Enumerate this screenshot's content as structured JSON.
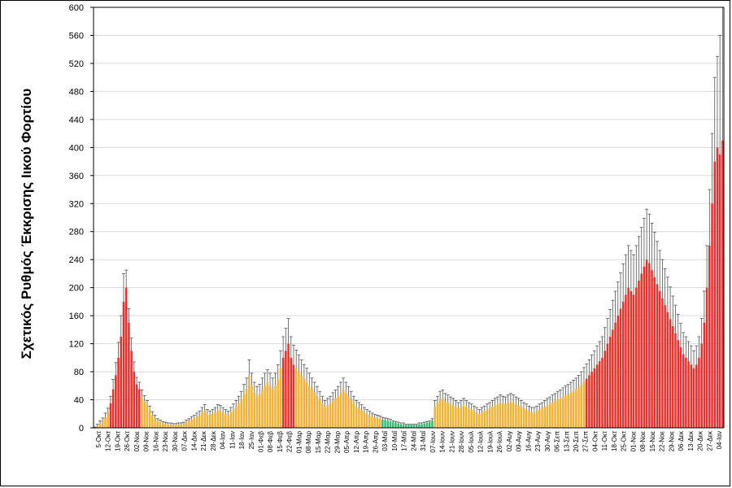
{
  "chart_data": {
    "type": "bar",
    "ylabel": "Σχετικός Ρυθμός Έκκρισης Ιικού Φορτίου",
    "ylim": [
      0,
      600
    ],
    "yticks": [
      0,
      40,
      80,
      120,
      160,
      200,
      240,
      280,
      320,
      360,
      400,
      440,
      480,
      520,
      560,
      600
    ],
    "grid": true,
    "colors": {
      "high": "#e8302c",
      "medium": "#f2b233",
      "low": "#2fbf71",
      "error": "#555555"
    },
    "x_tick_labels": [
      "5-Οκτ",
      "12-Οκτ",
      "19-Οκτ",
      "26-Οκτ",
      "02-Νοε",
      "09-Νοε",
      "16-Νοε",
      "23-Νοε",
      "30-Νοε",
      "07-Δεκ",
      "14-Δεκ",
      "21-Δεκ",
      "28-Δεκ",
      "04-Ιαν",
      "11-Ιαν",
      "18-Ιαν",
      "25-Ιαν",
      "01-Φεβ",
      "08-Φεβ",
      "15-Φεβ",
      "22-Φεβ",
      "01-Μαρ",
      "08-Μαρ",
      "15-Μαρ",
      "22-Μαρ",
      "29-Μαρ",
      "05-Απρ",
      "12-Απρ",
      "19-Απρ",
      "26-Απρ",
      "03-Μαΐ",
      "10-Μαΐ",
      "17-Μαΐ",
      "24-Μαΐ",
      "31-Μαΐ",
      "07-Ιουν",
      "14-Ιουν",
      "21-Ιουν",
      "28-Ιουν",
      "05-Ιουλ",
      "12-Ιουλ",
      "19-Ιουλ",
      "26-Ιουλ",
      "02-Αυγ",
      "09-Αυγ",
      "16-Αυγ",
      "23-Αυγ",
      "30-Αυγ",
      "06-Σεπ",
      "13-Σεπ",
      "20-Σεπ",
      "27-Σεπ",
      "04-Οκτ",
      "11-Οκτ",
      "18-Οκτ",
      "25-Οκτ",
      "01-Νοε",
      "08-Νοε",
      "15-Νοε",
      "22-Νοε",
      "29-Νοε",
      "06-Δεκ",
      "13-Δεκ",
      "20-Δεκ",
      "27-Δεκ",
      "04-Ιαν"
    ],
    "series": [
      {
        "points": [
          [
            0,
            1,
            "m"
          ],
          [
            3,
            2,
            "m"
          ],
          [
            6,
            4,
            "m"
          ],
          [
            10,
            4,
            "m"
          ],
          [
            15,
            6,
            "m"
          ],
          [
            22,
            6,
            "m"
          ],
          [
            35,
            10,
            "h"
          ],
          [
            55,
            14,
            "h"
          ],
          [
            75,
            18,
            "h"
          ],
          [
            100,
            22,
            "h"
          ],
          [
            130,
            30,
            "h"
          ],
          [
            180,
            40,
            "h"
          ],
          [
            200,
            25,
            "h"
          ],
          [
            150,
            20,
            "h"
          ],
          [
            110,
            18,
            "h"
          ],
          [
            80,
            14,
            "h"
          ],
          [
            62,
            10,
            "h"
          ],
          [
            55,
            10,
            "h"
          ],
          [
            45,
            9,
            "m"
          ],
          [
            38,
            8,
            "m"
          ],
          [
            32,
            7,
            "m"
          ],
          [
            25,
            6,
            "m"
          ],
          [
            18,
            5,
            "m"
          ],
          [
            14,
            4,
            "m"
          ],
          [
            10,
            3,
            "m"
          ],
          [
            8,
            3,
            "m"
          ],
          [
            7,
            2,
            "m"
          ],
          [
            6,
            2,
            "m"
          ],
          [
            5,
            2,
            "m"
          ],
          [
            5,
            2,
            "m"
          ],
          [
            4,
            2,
            "m"
          ],
          [
            4,
            2,
            "m"
          ],
          [
            5,
            2,
            "m"
          ],
          [
            5,
            2,
            "m"
          ],
          [
            6,
            2,
            "m"
          ],
          [
            8,
            3,
            "m"
          ],
          [
            10,
            3,
            "m"
          ],
          [
            12,
            4,
            "m"
          ],
          [
            14,
            4,
            "m"
          ],
          [
            16,
            5,
            "m"
          ],
          [
            18,
            6,
            "m"
          ],
          [
            22,
            7,
            "m"
          ],
          [
            25,
            8,
            "m"
          ],
          [
            20,
            6,
            "m"
          ],
          [
            18,
            6,
            "m"
          ],
          [
            20,
            6,
            "m"
          ],
          [
            22,
            7,
            "m"
          ],
          [
            25,
            8,
            "m"
          ],
          [
            24,
            8,
            "m"
          ],
          [
            22,
            7,
            "m"
          ],
          [
            20,
            6,
            "m"
          ],
          [
            18,
            6,
            "m"
          ],
          [
            22,
            7,
            "m"
          ],
          [
            26,
            8,
            "m"
          ],
          [
            30,
            9,
            "m"
          ],
          [
            35,
            10,
            "m"
          ],
          [
            40,
            12,
            "m"
          ],
          [
            48,
            14,
            "m"
          ],
          [
            55,
            16,
            "m"
          ],
          [
            75,
            22,
            "m"
          ],
          [
            60,
            18,
            "m"
          ],
          [
            50,
            15,
            "m"
          ],
          [
            45,
            14,
            "m"
          ],
          [
            48,
            14,
            "m"
          ],
          [
            55,
            16,
            "m"
          ],
          [
            60,
            18,
            "m"
          ],
          [
            65,
            18,
            "m"
          ],
          [
            60,
            18,
            "m"
          ],
          [
            55,
            16,
            "m"
          ],
          [
            60,
            18,
            "m"
          ],
          [
            70,
            20,
            "m"
          ],
          [
            85,
            25,
            "m"
          ],
          [
            100,
            30,
            "h"
          ],
          [
            110,
            32,
            "h"
          ],
          [
            120,
            36,
            "h"
          ],
          [
            100,
            30,
            "h"
          ],
          [
            90,
            28,
            "h"
          ],
          [
            85,
            26,
            "m"
          ],
          [
            80,
            24,
            "m"
          ],
          [
            75,
            22,
            "m"
          ],
          [
            70,
            20,
            "m"
          ],
          [
            65,
            20,
            "m"
          ],
          [
            60,
            18,
            "m"
          ],
          [
            55,
            16,
            "m"
          ],
          [
            50,
            15,
            "m"
          ],
          [
            45,
            14,
            "m"
          ],
          [
            40,
            12,
            "m"
          ],
          [
            35,
            10,
            "m"
          ],
          [
            30,
            9,
            "m"
          ],
          [
            32,
            10,
            "m"
          ],
          [
            35,
            10,
            "m"
          ],
          [
            38,
            12,
            "m"
          ],
          [
            42,
            12,
            "m"
          ],
          [
            45,
            14,
            "m"
          ],
          [
            50,
            15,
            "m"
          ],
          [
            55,
            16,
            "m"
          ],
          [
            50,
            15,
            "m"
          ],
          [
            45,
            14,
            "m"
          ],
          [
            40,
            12,
            "m"
          ],
          [
            35,
            10,
            "m"
          ],
          [
            30,
            9,
            "m"
          ],
          [
            28,
            8,
            "m"
          ],
          [
            25,
            8,
            "m"
          ],
          [
            22,
            7,
            "m"
          ],
          [
            20,
            6,
            "m"
          ],
          [
            18,
            6,
            "m"
          ],
          [
            16,
            5,
            "m"
          ],
          [
            15,
            4,
            "m"
          ],
          [
            14,
            4,
            "m"
          ],
          [
            13,
            4,
            "m"
          ],
          [
            12,
            3,
            "l"
          ],
          [
            11,
            3,
            "l"
          ],
          [
            10,
            3,
            "l"
          ],
          [
            9,
            3,
            "l"
          ],
          [
            8,
            2,
            "l"
          ],
          [
            7,
            2,
            "l"
          ],
          [
            6,
            2,
            "l"
          ],
          [
            5,
            2,
            "l"
          ],
          [
            5,
            2,
            "l"
          ],
          [
            4,
            1,
            "l"
          ],
          [
            4,
            1,
            "l"
          ],
          [
            4,
            1,
            "l"
          ],
          [
            4,
            1,
            "l"
          ],
          [
            4,
            1,
            "l"
          ],
          [
            5,
            2,
            "l"
          ],
          [
            5,
            2,
            "l"
          ],
          [
            6,
            2,
            "l"
          ],
          [
            7,
            2,
            "l"
          ],
          [
            8,
            2,
            "l"
          ],
          [
            10,
            3,
            "l"
          ],
          [
            30,
            9,
            "m"
          ],
          [
            35,
            10,
            "m"
          ],
          [
            40,
            12,
            "m"
          ],
          [
            42,
            12,
            "m"
          ],
          [
            38,
            11,
            "m"
          ],
          [
            36,
            11,
            "m"
          ],
          [
            34,
            10,
            "m"
          ],
          [
            32,
            10,
            "m"
          ],
          [
            30,
            9,
            "m"
          ],
          [
            28,
            8,
            "m"
          ],
          [
            30,
            9,
            "m"
          ],
          [
            32,
            10,
            "m"
          ],
          [
            30,
            9,
            "m"
          ],
          [
            28,
            8,
            "m"
          ],
          [
            26,
            8,
            "m"
          ],
          [
            24,
            7,
            "m"
          ],
          [
            22,
            7,
            "m"
          ],
          [
            20,
            6,
            "m"
          ],
          [
            22,
            7,
            "m"
          ],
          [
            24,
            7,
            "m"
          ],
          [
            26,
            8,
            "m"
          ],
          [
            28,
            8,
            "m"
          ],
          [
            30,
            9,
            "m"
          ],
          [
            32,
            10,
            "m"
          ],
          [
            34,
            10,
            "m"
          ],
          [
            36,
            11,
            "m"
          ],
          [
            35,
            10,
            "m"
          ],
          [
            34,
            10,
            "m"
          ],
          [
            36,
            11,
            "m"
          ],
          [
            38,
            11,
            "m"
          ],
          [
            36,
            11,
            "m"
          ],
          [
            34,
            10,
            "m"
          ],
          [
            32,
            10,
            "m"
          ],
          [
            30,
            9,
            "m"
          ],
          [
            28,
            8,
            "m"
          ],
          [
            26,
            8,
            "m"
          ],
          [
            24,
            7,
            "m"
          ],
          [
            22,
            7,
            "m"
          ],
          [
            22,
            7,
            "m"
          ],
          [
            24,
            7,
            "m"
          ],
          [
            26,
            8,
            "m"
          ],
          [
            28,
            8,
            "m"
          ],
          [
            30,
            9,
            "m"
          ],
          [
            32,
            10,
            "m"
          ],
          [
            34,
            10,
            "m"
          ],
          [
            36,
            11,
            "m"
          ],
          [
            38,
            11,
            "m"
          ],
          [
            40,
            12,
            "m"
          ],
          [
            42,
            12,
            "m"
          ],
          [
            44,
            13,
            "m"
          ],
          [
            46,
            14,
            "m"
          ],
          [
            48,
            14,
            "m"
          ],
          [
            50,
            15,
            "m"
          ],
          [
            52,
            16,
            "m"
          ],
          [
            55,
            16,
            "m"
          ],
          [
            58,
            17,
            "m"
          ],
          [
            62,
            18,
            "m"
          ],
          [
            66,
            20,
            "m"
          ],
          [
            70,
            21,
            "h"
          ],
          [
            75,
            22,
            "h"
          ],
          [
            80,
            24,
            "h"
          ],
          [
            85,
            25,
            "h"
          ],
          [
            90,
            27,
            "h"
          ],
          [
            95,
            28,
            "h"
          ],
          [
            100,
            30,
            "h"
          ],
          [
            110,
            33,
            "h"
          ],
          [
            120,
            36,
            "h"
          ],
          [
            130,
            39,
            "h"
          ],
          [
            140,
            42,
            "h"
          ],
          [
            150,
            45,
            "h"
          ],
          [
            160,
            48,
            "h"
          ],
          [
            170,
            51,
            "h"
          ],
          [
            180,
            54,
            "h"
          ],
          [
            190,
            57,
            "h"
          ],
          [
            200,
            60,
            "h"
          ],
          [
            195,
            58,
            "h"
          ],
          [
            190,
            57,
            "h"
          ],
          [
            200,
            60,
            "h"
          ],
          [
            210,
            63,
            "h"
          ],
          [
            220,
            66,
            "h"
          ],
          [
            230,
            69,
            "h"
          ],
          [
            240,
            72,
            "h"
          ],
          [
            235,
            70,
            "h"
          ],
          [
            225,
            67,
            "h"
          ],
          [
            215,
            64,
            "h"
          ],
          [
            205,
            61,
            "h"
          ],
          [
            195,
            58,
            "h"
          ],
          [
            185,
            55,
            "h"
          ],
          [
            175,
            52,
            "h"
          ],
          [
            165,
            50,
            "h"
          ],
          [
            155,
            46,
            "h"
          ],
          [
            145,
            43,
            "h"
          ],
          [
            135,
            40,
            "h"
          ],
          [
            125,
            37,
            "h"
          ],
          [
            115,
            34,
            "h"
          ],
          [
            105,
            31,
            "h"
          ],
          [
            100,
            30,
            "h"
          ],
          [
            95,
            28,
            "h"
          ],
          [
            90,
            27,
            "h"
          ],
          [
            85,
            25,
            "h"
          ],
          [
            90,
            27,
            "h"
          ],
          [
            100,
            30,
            "h"
          ],
          [
            120,
            36,
            "h"
          ],
          [
            150,
            45,
            "h"
          ],
          [
            200,
            60,
            "h"
          ],
          [
            260,
            80,
            "h"
          ],
          [
            320,
            100,
            "h"
          ],
          [
            380,
            120,
            "h"
          ],
          [
            400,
            130,
            "h"
          ],
          [
            390,
            170,
            "h"
          ],
          [
            410,
            190,
            "h"
          ]
        ]
      }
    ]
  }
}
